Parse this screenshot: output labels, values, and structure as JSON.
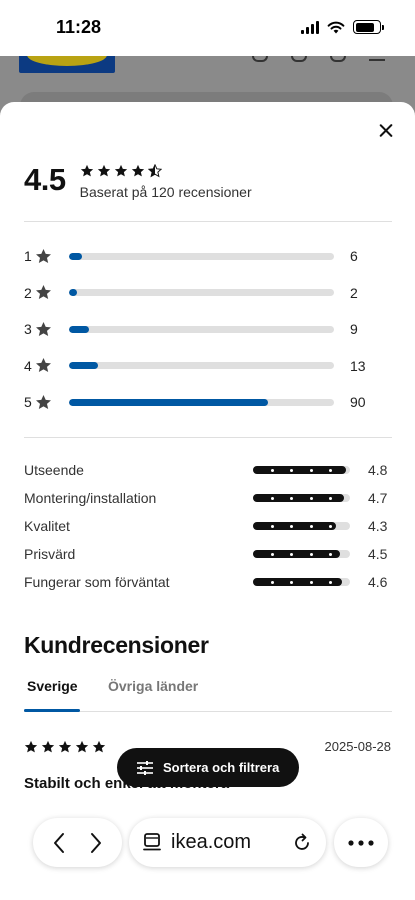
{
  "status_bar": {
    "time": "11:28"
  },
  "summary": {
    "average": "4.5",
    "average_value": 4.5,
    "based_on": "Baserat på 120 recensioner"
  },
  "distribution": [
    {
      "stars": "1",
      "count": "6",
      "value": 6
    },
    {
      "stars": "2",
      "count": "2",
      "value": 2
    },
    {
      "stars": "3",
      "count": "9",
      "value": 9
    },
    {
      "stars": "4",
      "count": "13",
      "value": 13
    },
    {
      "stars": "5",
      "count": "90",
      "value": 90
    }
  ],
  "distribution_max": 120,
  "categories": [
    {
      "label": "Utseende",
      "score": "4.8",
      "value": 4.8
    },
    {
      "label": "Montering/installation",
      "score": "4.7",
      "value": 4.7
    },
    {
      "label": "Kvalitet",
      "score": "4.3",
      "value": 4.3
    },
    {
      "label": "Prisvärd",
      "score": "4.5",
      "value": 4.5
    },
    {
      "label": "Fungerar som förväntat",
      "score": "4.6",
      "value": 4.6
    }
  ],
  "reviews_section": {
    "title": "Kundrecensioner",
    "tabs": [
      {
        "label": "Sverige",
        "active": true
      },
      {
        "label": "Övriga länder",
        "active": false
      }
    ],
    "first_review": {
      "rating": 5,
      "date": "2025-08-28",
      "title": "Stabilt och enkel att montera"
    }
  },
  "sort_button": {
    "label": "Sortera och filtrera"
  },
  "browser": {
    "url": "ikea.com"
  },
  "colors": {
    "accent": "#0058a3",
    "track": "#dfdfdf",
    "text": "#111111"
  },
  "icons": {
    "close": "close-icon",
    "star": "star-icon",
    "sort": "sliders-icon",
    "back": "chevron-left-icon",
    "forward": "chevron-right-icon",
    "tabs": "tab-overview-icon",
    "reload": "reload-icon",
    "more": "more-icon"
  }
}
